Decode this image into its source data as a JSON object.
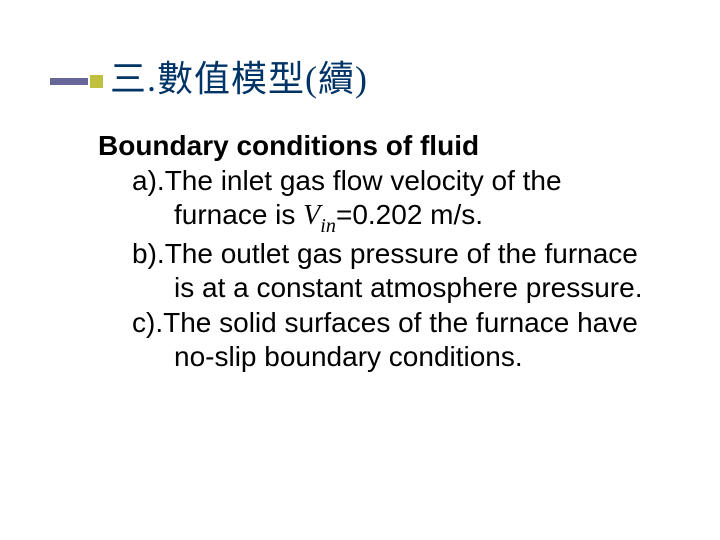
{
  "title": "三.數值模型(續)",
  "heading": "Boundary conditions of fluid",
  "items": {
    "a": {
      "label": "a).",
      "line1": "The inlet gas flow velocity of the",
      "line2_pre": "furnace is ",
      "var": "V",
      "sub": "in",
      "line2_post": "=0.202 m/s."
    },
    "b": {
      "label": "b).",
      "line1": "The outlet gas pressure of the furnace",
      "line2": "is at a constant atmosphere pressure."
    },
    "c": {
      "label": "c).",
      "line1": "The solid surfaces of the furnace have",
      "line2": "no-slip boundary conditions."
    }
  },
  "colors": {
    "title_color": "#003366",
    "bar_color": "#666699",
    "square_color": "#c0c040",
    "text_color": "#000000",
    "background": "#ffffff"
  },
  "typography": {
    "title_fontsize": 36,
    "body_fontsize": 28,
    "heading_weight": "bold"
  }
}
